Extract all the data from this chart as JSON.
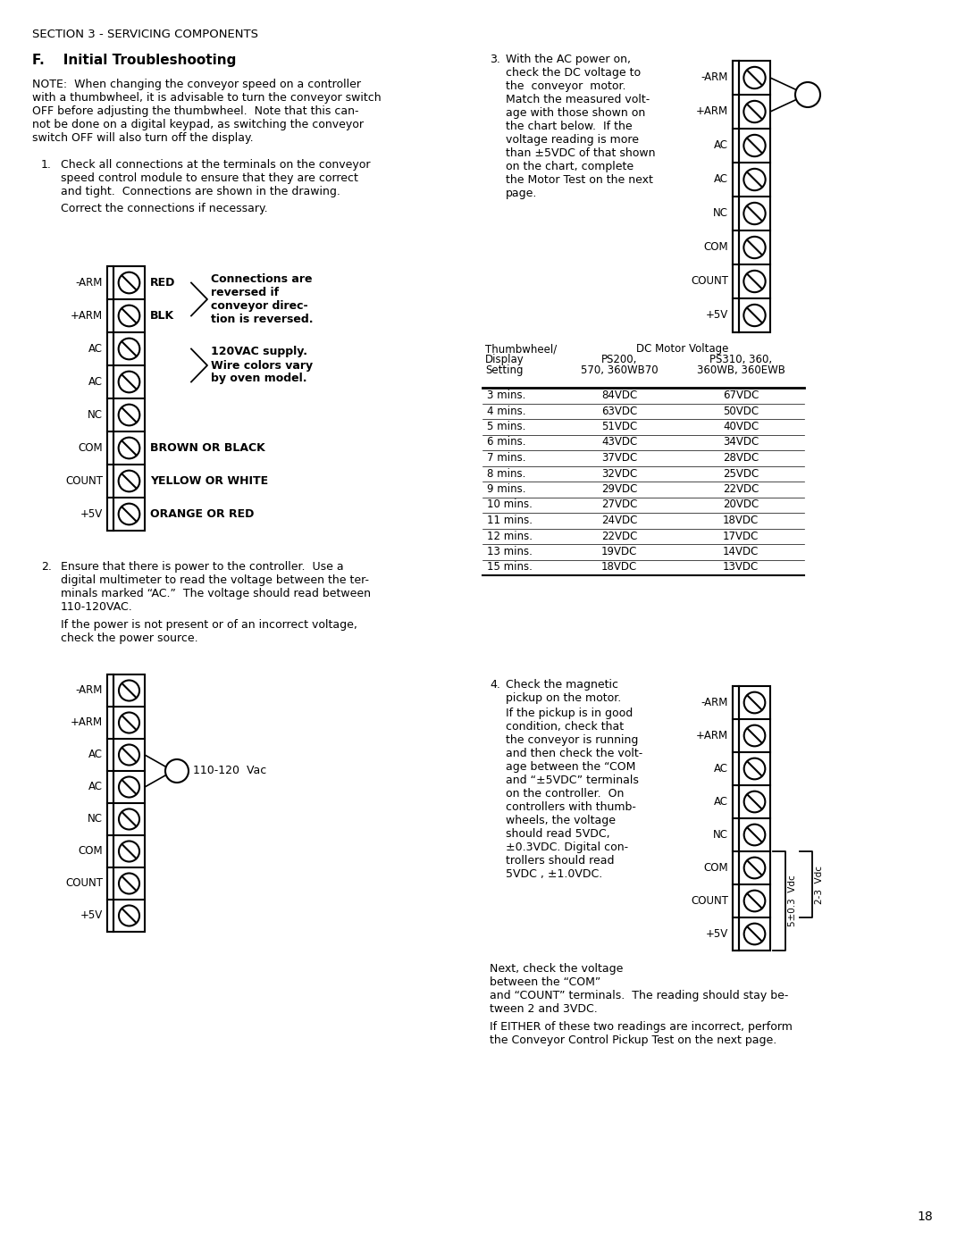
{
  "page_num": "18",
  "section_header": "SECTION 3 - SERVICING COMPONENTS",
  "section_f_title": "F.    Initial Troubleshooting",
  "note_lines": [
    "NOTE:  When changing the conveyor speed on a controller",
    "with a thumbwheel, it is advisable to turn the conveyor switch",
    "OFF before adjusting the thumbwheel.  Note that this can-",
    "not be done on a digital keypad, as switching the conveyor",
    "switch OFF will also turn off the display."
  ],
  "item1_lines": [
    "Check all connections at the terminals on the conveyor",
    "speed control module to ensure that they are correct",
    "and tight.  Connections are shown in the drawing."
  ],
  "item1_sub": "Correct the connections if necessary.",
  "diag1_labels": [
    "-ARM",
    "+ARM",
    "AC",
    "AC",
    "NC",
    "COM",
    "COUNT",
    "+5V"
  ],
  "diag1_right": [
    "RED",
    "BLK",
    "",
    "",
    "",
    "BROWN OR BLACK",
    "YELLOW OR WHITE",
    "ORANGE OR RED"
  ],
  "annot1": "Connections are\nreversed if\nconveyor direc-\ntion is reversed.",
  "annot2": "120VAC supply.\nWire colors vary\nby oven model.",
  "item2_lines": [
    "Ensure that there is power to the controller.  Use a",
    "digital multimeter to read the voltage between the ter-",
    "minals marked “AC.”  The voltage should read between",
    "110-120VAC."
  ],
  "item2_sub_lines": [
    "If the power is not present or of an incorrect voltage,",
    "check the power source."
  ],
  "diag2_labels": [
    "-ARM",
    "+ARM",
    "AC",
    "AC",
    "NC",
    "COM",
    "COUNT",
    "+5V"
  ],
  "diag2_annot": "110-120  Vac",
  "item3_lines": [
    "With the AC power on,",
    "check the DC voltage to",
    "the  conveyor  motor.",
    "Match the measured volt-",
    "age with those shown on",
    "the chart below.  If the",
    "voltage reading is more",
    "than ±5VDC of that shown",
    "on the chart, complete",
    "the Motor Test on the next",
    "page."
  ],
  "diag3_labels": [
    "-ARM",
    "+ARM",
    "AC",
    "AC",
    "NC",
    "COM",
    "COUNT",
    "+5V"
  ],
  "table_rows": [
    [
      "3 mins.",
      "84VDC",
      "67VDC"
    ],
    [
      "4 mins.",
      "63VDC",
      "50VDC"
    ],
    [
      "5 mins.",
      "51VDC",
      "40VDC"
    ],
    [
      "6 mins.",
      "43VDC",
      "34VDC"
    ],
    [
      "7 mins.",
      "37VDC",
      "28VDC"
    ],
    [
      "8 mins.",
      "32VDC",
      "25VDC"
    ],
    [
      "9 mins.",
      "29VDC",
      "22VDC"
    ],
    [
      "10 mins.",
      "27VDC",
      "20VDC"
    ],
    [
      "11 mins.",
      "24VDC",
      "18VDC"
    ],
    [
      "12 mins.",
      "22VDC",
      "17VDC"
    ],
    [
      "13 mins.",
      "19VDC",
      "14VDC"
    ],
    [
      "15 mins.",
      "18VDC",
      "13VDC"
    ]
  ],
  "item4_line1": "Check the magnetic",
  "item4_line2": "pickup on the motor.",
  "item4_sub_lines": [
    "If the pickup is in good",
    "condition, check that",
    "the conveyor is running",
    "and then check the volt-",
    "age between the “COM",
    "and “±5VDC” terminals",
    "on the controller.  On",
    "controllers with thumb-",
    "wheels, the voltage",
    "should read 5VDC,",
    "±0.3VDC. Digital con-",
    "trollers should read",
    "5VDC , ±1.0VDC."
  ],
  "item4_cont_lines": [
    "Next, check the voltage",
    "between the “COM”",
    "and “COUNT” terminals.  The reading should stay be-",
    "tween 2 and 3VDC."
  ],
  "item4_final_lines": [
    "If EITHER of these two readings are incorrect, perform",
    "the Conveyor Control Pickup Test on the next page."
  ],
  "diag4_labels": [
    "-ARM",
    "+ARM",
    "AC",
    "AC",
    "NC",
    "COM",
    "COUNT",
    "+5V"
  ],
  "bg_color": "#ffffff"
}
